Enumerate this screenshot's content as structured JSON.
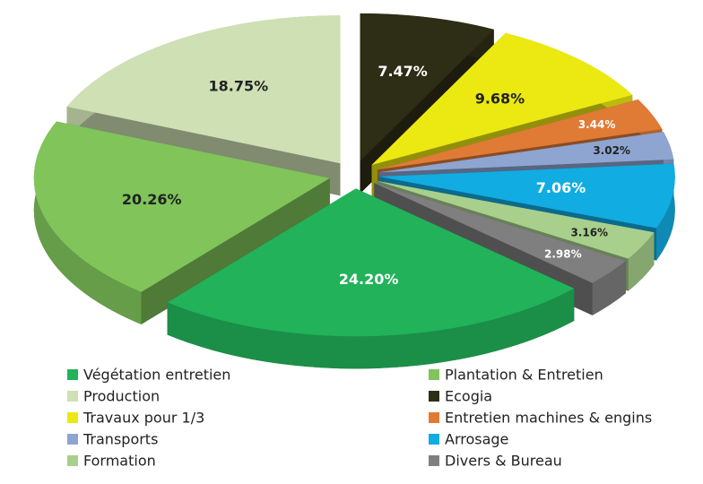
{
  "chart_data": {
    "type": "pie",
    "categories": [
      "Végétation entretien",
      "Plantation & Entretien",
      "Production",
      "Ecogia",
      "Travaux pour 1/3",
      "Entretien machines & engins",
      "Transports",
      "Arrosage",
      "Formation",
      "Divers & Bureau"
    ],
    "values": [
      24.2,
      20.26,
      18.75,
      7.47,
      9.68,
      3.44,
      3.02,
      7.06,
      3.16,
      2.98
    ],
    "value_labels": [
      "24.20%",
      "20.26%",
      "18.75%",
      "7.47%",
      "9.68%",
      "3.44%",
      "3.02%",
      "7.06%",
      "3.16%",
      "2.98%"
    ],
    "colors": [
      "#22b25a",
      "#80c45a",
      "#cfe0b4",
      "#2e2d16",
      "#ece912",
      "#e07b36",
      "#8ea5d1",
      "#11ace2",
      "#a8cf8c",
      "#7f7f7f"
    ],
    "legend": "bottom"
  }
}
